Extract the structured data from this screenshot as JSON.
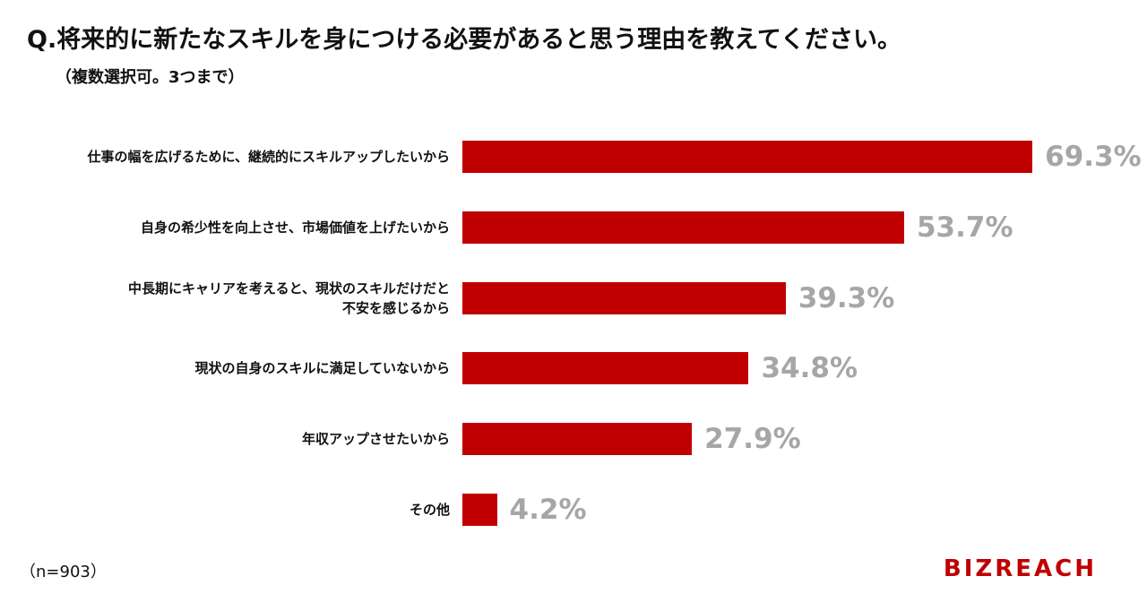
{
  "chart_data": {
    "type": "bar",
    "orientation": "horizontal",
    "title": "Q.将来的に新たなスキルを身につける必要があると思う理由を教えてください。",
    "subtitle": "（複数選択可。3つまで）",
    "categories": [
      "仕事の幅を広げるために、継続的にスキルアップしたいから",
      "自身の希少性を向上させ、市場価値を上げたいから",
      "中長期にキャリアを考えると、現状のスキルだけだと\n不安を感じるから",
      "現状の自身のスキルに満足していないから",
      "年収アップさせたいから",
      "その他"
    ],
    "values": [
      69.3,
      53.7,
      39.3,
      34.8,
      27.9,
      4.2
    ],
    "value_labels": [
      "69.3%",
      "53.7%",
      "39.3%",
      "34.8%",
      "27.9%",
      "4.2%"
    ],
    "color": "#c00000",
    "note": "（n=903）"
  },
  "brand": "BIZREACH"
}
